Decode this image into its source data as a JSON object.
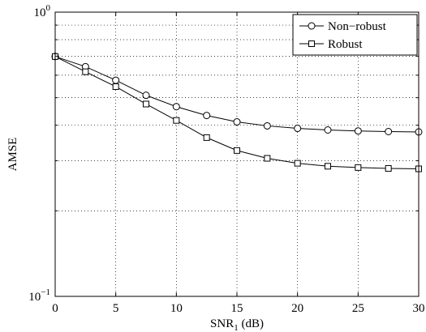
{
  "chart_data": {
    "type": "line",
    "title": "",
    "xlabel": "SNR",
    "xlabel_subscript": "1",
    "xlabel_suffix": " (dB)",
    "ylabel": "AMSE",
    "xlim": [
      0,
      30
    ],
    "ylim": [
      0.1,
      1
    ],
    "yscale": "log",
    "grid": true,
    "grid_style": "dotted",
    "legend_position": "top-right",
    "x_ticks": [
      0,
      5,
      10,
      15,
      20,
      25,
      30
    ],
    "x_tick_labels": [
      "0",
      "5",
      "10",
      "15",
      "20",
      "25",
      "30"
    ],
    "y_major_ticks": [
      {
        "value": 0.1,
        "base": "10",
        "exp": "−1"
      },
      {
        "value": 1,
        "base": "10",
        "exp": "0"
      }
    ],
    "y_minor_ticks": [
      0.2,
      0.3,
      0.4,
      0.5,
      0.6,
      0.7,
      0.8,
      0.9
    ],
    "x": [
      0,
      2.5,
      5,
      7.5,
      10,
      12.5,
      15,
      17.5,
      20,
      22.5,
      25,
      27.5,
      30
    ],
    "series": [
      {
        "name": "Non−robust",
        "marker": "circle",
        "color": "#000000",
        "values": [
          0.698,
          0.643,
          0.576,
          0.51,
          0.465,
          0.433,
          0.411,
          0.398,
          0.39,
          0.385,
          0.382,
          0.38,
          0.379
        ]
      },
      {
        "name": "Robust",
        "marker": "square",
        "color": "#000000",
        "values": [
          0.698,
          0.617,
          0.547,
          0.475,
          0.416,
          0.362,
          0.326,
          0.306,
          0.294,
          0.287,
          0.284,
          0.282,
          0.281
        ]
      }
    ]
  }
}
